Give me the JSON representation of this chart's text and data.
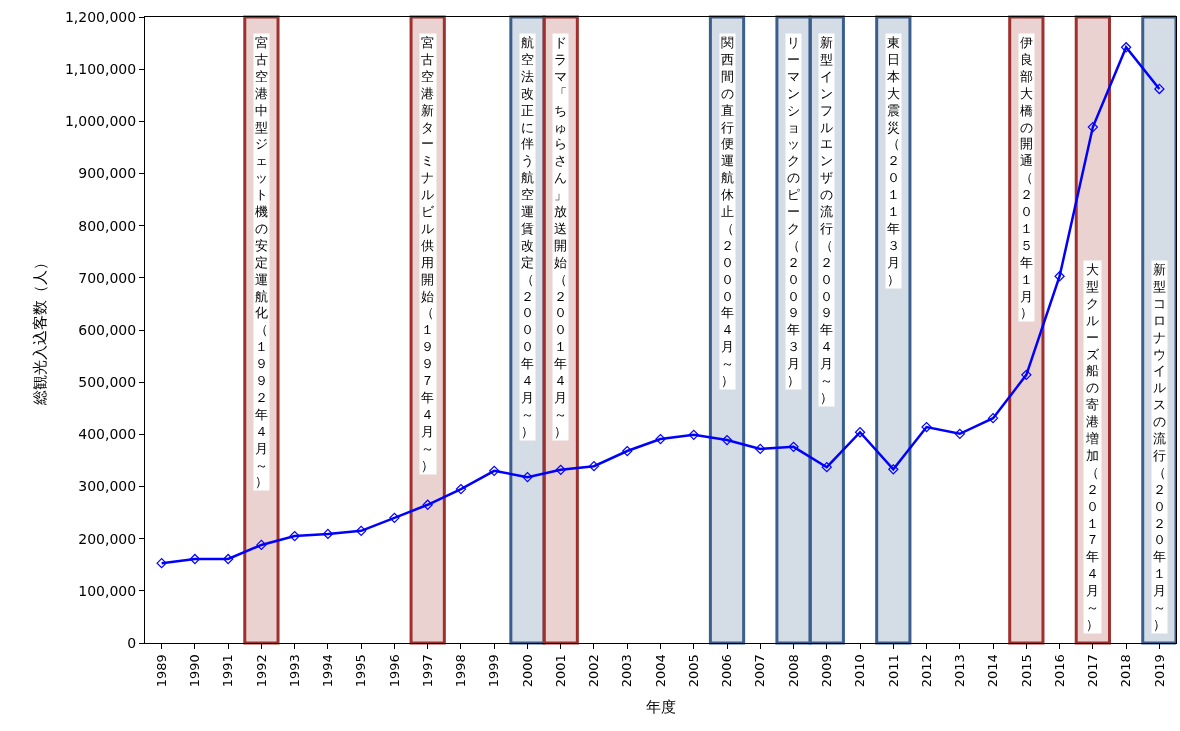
{
  "chart_data": {
    "type": "line",
    "xlabel": "年度",
    "ylabel": "総観光入込客数（人）",
    "x": [
      1989,
      1990,
      1991,
      1992,
      1993,
      1994,
      1995,
      1996,
      1997,
      1998,
      1999,
      2000,
      2001,
      2002,
      2003,
      2004,
      2005,
      2006,
      2007,
      2008,
      2009,
      2010,
      2011,
      2012,
      2013,
      2014,
      2015,
      2016,
      2017,
      2018,
      2019
    ],
    "series": [
      {
        "color": "#0000ff",
        "values": [
          153000,
          161000,
          161000,
          188000,
          205000,
          209000,
          215000,
          240000,
          265000,
          295000,
          330000,
          318000,
          332000,
          339000,
          368000,
          391000,
          399000,
          389000,
          372000,
          376000,
          337000,
          404000,
          333000,
          414000,
          401000,
          431000,
          514000,
          703000,
          989000,
          1142000,
          1062000
        ]
      }
    ],
    "xlim": [
      1988.5,
      2019.5
    ],
    "xticks": [
      1989,
      1990,
      1991,
      1992,
      1993,
      1994,
      1995,
      1996,
      1997,
      1998,
      1999,
      2000,
      2001,
      2002,
      2003,
      2004,
      2005,
      2006,
      2007,
      2008,
      2009,
      2010,
      2011,
      2012,
      2013,
      2014,
      2015,
      2016,
      2017,
      2018,
      2019
    ],
    "ylim": [
      0,
      1200000
    ],
    "yticks": [
      {
        "value": 0,
        "label": "0"
      },
      {
        "value": 100000,
        "label": "100,000"
      },
      {
        "value": 200000,
        "label": "200,000"
      },
      {
        "value": 300000,
        "label": "300,000"
      },
      {
        "value": 400000,
        "label": "400,000"
      },
      {
        "value": 500000,
        "label": "500,000"
      },
      {
        "value": 600000,
        "label": "600,000"
      },
      {
        "value": 700000,
        "label": "700,000"
      },
      {
        "value": 800000,
        "label": "800,000"
      },
      {
        "value": 900000,
        "label": "900,000"
      },
      {
        "value": 1000000,
        "label": "1,000,000"
      },
      {
        "value": 1100000,
        "label": "1,100,000"
      },
      {
        "value": 1200000,
        "label": "1,200,000"
      }
    ],
    "bands": [
      {
        "axis": "x",
        "from": 1991.5,
        "to": 1992.5,
        "color": "#a0302e",
        "label": "宮古空港中型ジェット機の安定運航化（１９９２年４月～）"
      },
      {
        "axis": "x",
        "from": 1996.5,
        "to": 1997.5,
        "color": "#a0302e",
        "label": "宮古空港新ターミナルビル供用開始（１９９７年４月～）"
      },
      {
        "axis": "x",
        "from": 1999.5,
        "to": 2000.5,
        "color": "#3a5f8f",
        "label": "航空法改正に伴う航空運賃改定（２０００年４月～）"
      },
      {
        "axis": "x",
        "from": 2000.5,
        "to": 2001.5,
        "color": "#a0302e",
        "label": "ドラマ「ちゅらさん」放送開始（２００１年４月～）"
      },
      {
        "axis": "x",
        "from": 2005.5,
        "to": 2006.5,
        "color": "#3a5f8f",
        "label": "関西間の直行便運航休止（２０００年４月～）"
      },
      {
        "axis": "x",
        "from": 2007.5,
        "to": 2008.5,
        "color": "#3a5f8f",
        "label": "リーマンショックのピーク（２００９年３月）"
      },
      {
        "axis": "x",
        "from": 2008.5,
        "to": 2009.5,
        "color": "#3a5f8f",
        "label": "新型インフルエンザの流行（２００９年４月～）"
      },
      {
        "axis": "x",
        "from": 2010.5,
        "to": 2011.5,
        "color": "#3a5f8f",
        "label": "東日本大震災（２０１１年３月）"
      },
      {
        "axis": "x",
        "from": 2014.5,
        "to": 2015.5,
        "color": "#a0302e",
        "label": "伊良部大橋の開通（２０１５年１月）"
      },
      {
        "axis": "x",
        "from": 2016.5,
        "to": 2017.5,
        "color": "#a0302e",
        "label": "大型クルーズ船の寄港増加（２０１７年４月～）"
      },
      {
        "axis": "x",
        "from": 2018.5,
        "to": 2019.5,
        "color": "#3a5f8f",
        "label": "新型コロナウイルスの流行（２０２０年１月～）"
      }
    ],
    "marker": "diamond",
    "line_style": "solid",
    "grid": false,
    "legend": false
  }
}
